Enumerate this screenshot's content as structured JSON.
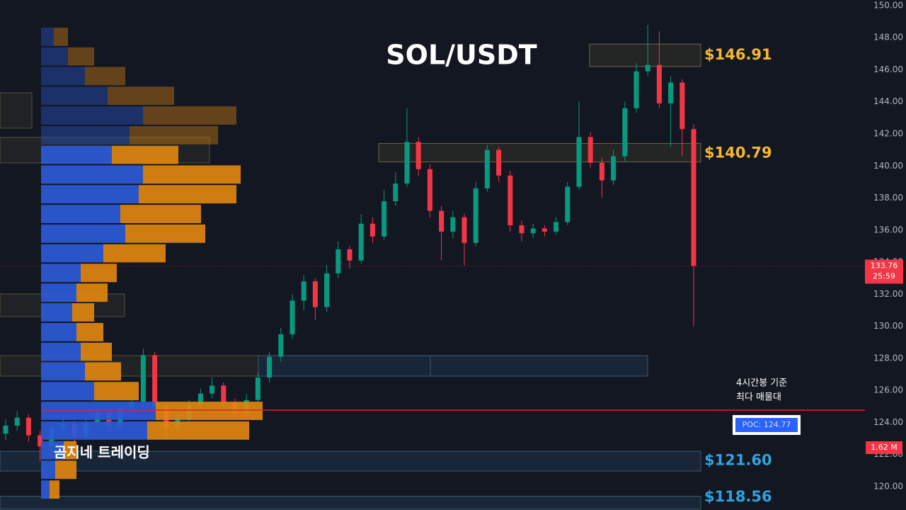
{
  "chart_data": {
    "type": "candlestick",
    "title": "SOL/USDT",
    "watermark": "곰지네 트레이딩",
    "open": [
      123.3,
      123.8,
      124.3,
      123.2,
      122.5,
      123.6,
      123.9,
      123.1,
      124.0,
      124.6,
      123.8,
      124.9,
      125.3,
      128.2,
      125.0,
      123.6,
      124.2,
      125.1,
      125.8,
      126.3,
      125.2,
      124.6,
      125.4,
      126.8,
      128.1,
      129.5,
      131.6,
      132.8,
      131.2,
      133.3,
      134.8,
      134.1,
      136.4,
      135.6,
      137.8,
      138.9,
      141.5,
      139.8,
      137.2,
      135.9,
      136.8,
      135.2,
      138.6,
      141.0,
      139.4,
      136.3,
      135.8,
      136.1,
      135.9,
      136.5,
      138.7,
      141.8,
      140.2,
      139.1,
      140.6,
      143.6,
      145.9,
      146.3,
      143.9,
      145.2,
      142.3
    ],
    "high": [
      124.2,
      124.7,
      124.5,
      123.5,
      123.9,
      124.4,
      124.1,
      124.3,
      125.0,
      124.8,
      125.2,
      125.7,
      128.6,
      128.4,
      125.2,
      124.6,
      125.4,
      126.1,
      126.8,
      126.5,
      125.5,
      125.8,
      127.1,
      128.4,
      129.9,
      132.0,
      133.2,
      133.0,
      133.8,
      135.3,
      135.0,
      137.0,
      136.8,
      138.5,
      139.6,
      143.6,
      141.8,
      140.1,
      137.5,
      137.2,
      137.0,
      139.0,
      141.3,
      141.2,
      139.7,
      136.6,
      136.4,
      136.3,
      136.8,
      139.0,
      144.0,
      142.1,
      140.5,
      141.0,
      144.0,
      146.4,
      148.8,
      148.4,
      145.6,
      145.4,
      142.6
    ],
    "low": [
      122.9,
      123.5,
      122.8,
      121.6,
      122.2,
      123.2,
      122.7,
      122.9,
      123.7,
      123.4,
      123.6,
      124.6,
      125.0,
      124.7,
      123.0,
      123.3,
      123.9,
      124.8,
      125.5,
      124.9,
      124.3,
      124.4,
      125.2,
      126.5,
      127.8,
      129.2,
      131.0,
      130.4,
      130.9,
      133.0,
      133.6,
      133.9,
      135.2,
      135.4,
      137.5,
      138.7,
      139.4,
      136.8,
      134.1,
      135.5,
      133.8,
      135.0,
      138.4,
      139.0,
      135.9,
      135.3,
      135.5,
      135.6,
      135.7,
      136.3,
      138.5,
      139.9,
      138.0,
      138.8,
      140.3,
      143.3,
      145.6,
      143.6,
      141.2,
      140.6,
      130.0
    ],
    "close": [
      123.8,
      124.3,
      123.2,
      122.5,
      123.6,
      123.9,
      123.1,
      124.0,
      124.6,
      123.8,
      124.9,
      125.3,
      128.2,
      125.0,
      123.6,
      124.2,
      125.1,
      125.8,
      126.3,
      125.2,
      124.6,
      125.4,
      126.8,
      128.1,
      129.5,
      131.6,
      132.8,
      131.2,
      133.3,
      134.8,
      134.1,
      136.4,
      135.6,
      137.8,
      138.9,
      141.5,
      139.8,
      137.2,
      135.9,
      136.8,
      135.2,
      138.6,
      141.0,
      139.4,
      136.3,
      135.8,
      136.1,
      135.9,
      136.5,
      138.7,
      141.8,
      140.2,
      139.1,
      140.6,
      143.6,
      145.9,
      146.3,
      143.9,
      145.2,
      142.3,
      133.76
    ],
    "up_color": "#089981",
    "down_color": "#f23645",
    "ylim": [
      118.54,
      150.35
    ],
    "yticks": [
      {
        "value": 120,
        "label": "120.00"
      },
      {
        "value": 122,
        "label": "122.00"
      },
      {
        "value": 124,
        "label": "124.00"
      },
      {
        "value": 126,
        "label": "126.00"
      },
      {
        "value": 128,
        "label": "128.00"
      },
      {
        "value": 130,
        "label": "130.00"
      },
      {
        "value": 132,
        "label": "132.00"
      },
      {
        "value": 134,
        "label": "134.00"
      },
      {
        "value": 136,
        "label": "136.00"
      },
      {
        "value": 138,
        "label": "138.00"
      },
      {
        "value": 140,
        "label": "140.00"
      },
      {
        "value": 142,
        "label": "142.00"
      },
      {
        "value": 144,
        "label": "144.00"
      },
      {
        "value": 146,
        "label": "146.00"
      },
      {
        "value": 148,
        "label": "148.00"
      },
      {
        "value": 150,
        "label": "150.00"
      }
    ],
    "grid": false,
    "current_price": 133.76,
    "countdown": "25:59",
    "volume_tag": "1.62 M",
    "poc": {
      "value": 124.77,
      "label": "POC: 124.77"
    },
    "poc_note": [
      "4시간봉 기준",
      "최다 매물대"
    ],
    "zones": [
      {
        "label": "$146.91",
        "value": 146.91,
        "high": 147.6,
        "low": 146.2,
        "color": "#f5b82e"
      },
      {
        "label": "$140.79",
        "value": 140.79,
        "high": 141.4,
        "low": 140.25,
        "color": "#f5b82e"
      },
      {
        "label": "$121.60",
        "value": 121.6,
        "high": 122.2,
        "low": 120.97,
        "color": "#2ea3e0"
      },
      {
        "label": "$118.56",
        "value": 118.56,
        "high": 119.4,
        "low": 118.6,
        "color": "#2ea3e0"
      }
    ],
    "volume_profile": {
      "bins": [
        119.2,
        120.43,
        121.66,
        122.88,
        124.11,
        125.34,
        126.57,
        127.8,
        129.02,
        130.25,
        131.48,
        132.71,
        133.94,
        135.16,
        136.39,
        137.62,
        138.85,
        140.08,
        141.3,
        142.53,
        143.76,
        144.99,
        146.22,
        147.44,
        148.67
      ],
      "buy": [
        12,
        20,
        32,
        150,
        162,
        75,
        62,
        56,
        50,
        44,
        50,
        56,
        88,
        119,
        112,
        138,
        144,
        100,
        125,
        144,
        94,
        62,
        38,
        18
      ],
      "sell": [
        14,
        30,
        18,
        144,
        151,
        63,
        51,
        44,
        38,
        31,
        44,
        51,
        88,
        113,
        114,
        138,
        138,
        94,
        125,
        132,
        94,
        57,
        37,
        20
      ],
      "in_value_area": [
        true,
        true,
        true,
        true,
        true,
        true,
        true,
        true,
        true,
        true,
        true,
        true,
        true,
        true,
        true,
        true,
        true,
        true,
        false,
        false,
        false,
        false,
        false,
        false
      ],
      "buy_color": "#2b5bd7",
      "sell_color": "#e0870f",
      "xlim": [
        0,
        330
      ]
    }
  }
}
